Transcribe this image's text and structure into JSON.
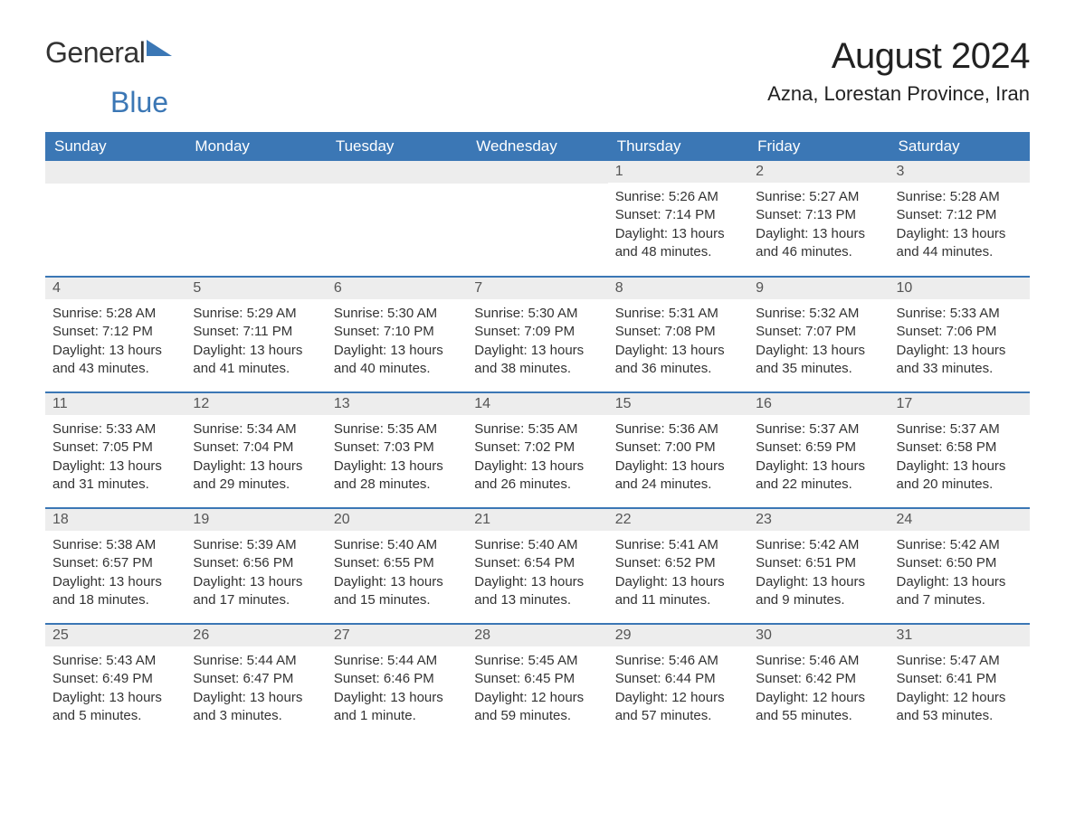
{
  "logo": {
    "word1": "General",
    "word2": "Blue"
  },
  "title": "August 2024",
  "location": "Azna, Lorestan Province, Iran",
  "colors": {
    "header_bg": "#3b77b5",
    "header_text": "#ffffff",
    "daynum_bg": "#ededed",
    "text": "#333333",
    "border": "#3b77b5",
    "page_bg": "#ffffff"
  },
  "weekdays": [
    "Sunday",
    "Monday",
    "Tuesday",
    "Wednesday",
    "Thursday",
    "Friday",
    "Saturday"
  ],
  "weeks": [
    [
      null,
      null,
      null,
      null,
      {
        "d": "1",
        "sr": "5:26 AM",
        "ss": "7:14 PM",
        "dl": "13 hours and 48 minutes."
      },
      {
        "d": "2",
        "sr": "5:27 AM",
        "ss": "7:13 PM",
        "dl": "13 hours and 46 minutes."
      },
      {
        "d": "3",
        "sr": "5:28 AM",
        "ss": "7:12 PM",
        "dl": "13 hours and 44 minutes."
      }
    ],
    [
      {
        "d": "4",
        "sr": "5:28 AM",
        "ss": "7:12 PM",
        "dl": "13 hours and 43 minutes."
      },
      {
        "d": "5",
        "sr": "5:29 AM",
        "ss": "7:11 PM",
        "dl": "13 hours and 41 minutes."
      },
      {
        "d": "6",
        "sr": "5:30 AM",
        "ss": "7:10 PM",
        "dl": "13 hours and 40 minutes."
      },
      {
        "d": "7",
        "sr": "5:30 AM",
        "ss": "7:09 PM",
        "dl": "13 hours and 38 minutes."
      },
      {
        "d": "8",
        "sr": "5:31 AM",
        "ss": "7:08 PM",
        "dl": "13 hours and 36 minutes."
      },
      {
        "d": "9",
        "sr": "5:32 AM",
        "ss": "7:07 PM",
        "dl": "13 hours and 35 minutes."
      },
      {
        "d": "10",
        "sr": "5:33 AM",
        "ss": "7:06 PM",
        "dl": "13 hours and 33 minutes."
      }
    ],
    [
      {
        "d": "11",
        "sr": "5:33 AM",
        "ss": "7:05 PM",
        "dl": "13 hours and 31 minutes."
      },
      {
        "d": "12",
        "sr": "5:34 AM",
        "ss": "7:04 PM",
        "dl": "13 hours and 29 minutes."
      },
      {
        "d": "13",
        "sr": "5:35 AM",
        "ss": "7:03 PM",
        "dl": "13 hours and 28 minutes."
      },
      {
        "d": "14",
        "sr": "5:35 AM",
        "ss": "7:02 PM",
        "dl": "13 hours and 26 minutes."
      },
      {
        "d": "15",
        "sr": "5:36 AM",
        "ss": "7:00 PM",
        "dl": "13 hours and 24 minutes."
      },
      {
        "d": "16",
        "sr": "5:37 AM",
        "ss": "6:59 PM",
        "dl": "13 hours and 22 minutes."
      },
      {
        "d": "17",
        "sr": "5:37 AM",
        "ss": "6:58 PM",
        "dl": "13 hours and 20 minutes."
      }
    ],
    [
      {
        "d": "18",
        "sr": "5:38 AM",
        "ss": "6:57 PM",
        "dl": "13 hours and 18 minutes."
      },
      {
        "d": "19",
        "sr": "5:39 AM",
        "ss": "6:56 PM",
        "dl": "13 hours and 17 minutes."
      },
      {
        "d": "20",
        "sr": "5:40 AM",
        "ss": "6:55 PM",
        "dl": "13 hours and 15 minutes."
      },
      {
        "d": "21",
        "sr": "5:40 AM",
        "ss": "6:54 PM",
        "dl": "13 hours and 13 minutes."
      },
      {
        "d": "22",
        "sr": "5:41 AM",
        "ss": "6:52 PM",
        "dl": "13 hours and 11 minutes."
      },
      {
        "d": "23",
        "sr": "5:42 AM",
        "ss": "6:51 PM",
        "dl": "13 hours and 9 minutes."
      },
      {
        "d": "24",
        "sr": "5:42 AM",
        "ss": "6:50 PM",
        "dl": "13 hours and 7 minutes."
      }
    ],
    [
      {
        "d": "25",
        "sr": "5:43 AM",
        "ss": "6:49 PM",
        "dl": "13 hours and 5 minutes."
      },
      {
        "d": "26",
        "sr": "5:44 AM",
        "ss": "6:47 PM",
        "dl": "13 hours and 3 minutes."
      },
      {
        "d": "27",
        "sr": "5:44 AM",
        "ss": "6:46 PM",
        "dl": "13 hours and 1 minute."
      },
      {
        "d": "28",
        "sr": "5:45 AM",
        "ss": "6:45 PM",
        "dl": "12 hours and 59 minutes."
      },
      {
        "d": "29",
        "sr": "5:46 AM",
        "ss": "6:44 PM",
        "dl": "12 hours and 57 minutes."
      },
      {
        "d": "30",
        "sr": "5:46 AM",
        "ss": "6:42 PM",
        "dl": "12 hours and 55 minutes."
      },
      {
        "d": "31",
        "sr": "5:47 AM",
        "ss": "6:41 PM",
        "dl": "12 hours and 53 minutes."
      }
    ]
  ],
  "labels": {
    "sunrise": "Sunrise:",
    "sunset": "Sunset:",
    "daylight": "Daylight:"
  }
}
